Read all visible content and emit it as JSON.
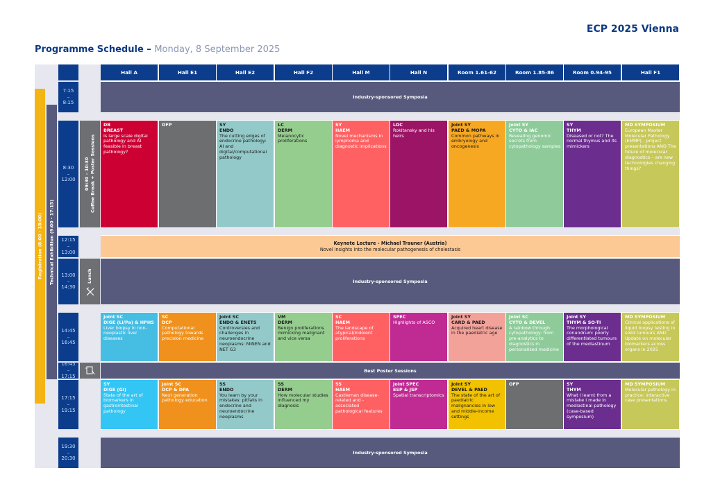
{
  "header": {
    "brand": "ECP 2025 Vienna",
    "title": "Programme Schedule –",
    "date": "Monday, 8 September 2025"
  },
  "halls": [
    "Hall A",
    "Hall E1",
    "Hall E2",
    "Hall F2",
    "Hall M",
    "Hall N",
    "Room 1.61-62",
    "Room 1.85-86",
    "Room 0.94-95",
    "Hall F1"
  ],
  "side_bars": {
    "registration": "Registration (8:00 - 18:00)",
    "exhibition": "Technical Exhibition (9:00 - 17:15)",
    "coffee": "09:30 – 10:30\nCoffee Break + Poster Sessions",
    "lunch": "Lunch"
  },
  "times": {
    "t1": {
      "start": "7:15",
      "sep": "–",
      "end": "8:15"
    },
    "t2": {
      "start": "8:30",
      "sep": "–",
      "end": "12:00"
    },
    "t3": {
      "start": "12:15",
      "sep": "–",
      "end": "13:00"
    },
    "t4": {
      "start": "13:00",
      "sep": "–",
      "end": "14:30"
    },
    "t5": {
      "start": "14:45",
      "sep": "–",
      "end": "16:45"
    },
    "t6": {
      "start": "16:45",
      "sep": "–",
      "end": "17:15"
    },
    "t7": {
      "start": "17:15",
      "sep": "–",
      "end": "19:15"
    },
    "t8": {
      "start": "19:30",
      "sep": "–",
      "end": "20:30"
    }
  },
  "bands": {
    "industry1": "Industry-sponsored Symposia",
    "keynote_title": "Keynote Lecture - Michael Trauner (Austria)",
    "keynote_sub": "Novel insights into the molecular pathogenesis of cholestasis",
    "industry2": "Industry-sponsored Symposia",
    "poster": "Best Poster Sessions",
    "industry3": "Industry-sponsored Symposia"
  },
  "rows": {
    "morning": [
      {
        "tag1": "DB",
        "tag2": "BREAST",
        "desc": "Is large scale digital pathology and AI feasible in breast pathology?",
        "bg": "#cc0033",
        "fg": "#ffffff"
      },
      {
        "tag1": "OFP",
        "tag2": "",
        "desc": "",
        "bg": "#6d6e70",
        "fg": "#ffffff"
      },
      {
        "tag1": "SY",
        "tag2": "ENDO",
        "desc": "The cutting edges of endocrine pathology: AI and digital/computational pathology",
        "bg": "#93c9c9",
        "fg": "#1a1a1a"
      },
      {
        "tag1": "LC",
        "tag2": "DERM",
        "desc": "Melanocytic proliferations",
        "bg": "#95cd8f",
        "fg": "#1a1a1a"
      },
      {
        "tag1": "SY",
        "tag2": "HAEM",
        "desc": "Novel mechanisms in lymphoma and diagnostic implications",
        "bg": "#ff6163",
        "fg": "#ffffff"
      },
      {
        "tag1": "LOC",
        "tag2": "",
        "desc": "Rokitansky and his heirs",
        "bg": "#9c1466",
        "fg": "#ffffff"
      },
      {
        "tag1": "Joint SY",
        "tag2": "PAED & MOPA",
        "desc": "Common pathways in embryology and oncogenesis",
        "bg": "#f7a823",
        "fg": "#1a1a1a"
      },
      {
        "tag1": "Joint SY",
        "tag2": "CYTO & IAC",
        "desc": "Revealing genomic secrets from cytopathology samples",
        "bg": "#8fcb9a",
        "fg": "#ffffff"
      },
      {
        "tag1": "SY",
        "tag2": "THYM",
        "desc": "Diseased or not? The normal thymus and its mimickers",
        "bg": "#6b2d8e",
        "fg": "#ffffff"
      },
      {
        "tag1": "MD SYMPOSIUM",
        "tag2": "",
        "desc": "European Master Molecular Pathology (EMMP) - project presentations AND The future of molecular diagnostics – are new technologies changing things?",
        "bg": "#c7c85a",
        "fg": "#ffffff"
      }
    ],
    "afternoon": [
      {
        "tag1": "Joint SC",
        "tag2": "DIGE (Li/Pa) & HPHS",
        "desc": "Liver biopsy in non-neoplastic liver diseases",
        "bg": "#46bde3",
        "fg": "#ffffff"
      },
      {
        "tag1": "SC",
        "tag2": "DCP",
        "desc": "Computational pathology towards precision medicine",
        "bg": "#f0911d",
        "fg": "#ffffff"
      },
      {
        "tag1": "Joint SC",
        "tag2": "ENDO & ENETS",
        "desc": "Controversies and challenges in neuroendocrine neoplasms: MiNEN and NET G3",
        "bg": "#93c9c9",
        "fg": "#1a1a1a"
      },
      {
        "tag1": "VM",
        "tag2": "DERM",
        "desc": "Benign proliferations mimicking malignant and vice versa",
        "bg": "#95cd8f",
        "fg": "#1a1a1a"
      },
      {
        "tag1": "SC",
        "tag2": "HAEM",
        "desc": "The landscape of atypical/indolent proliferations",
        "bg": "#ff6163",
        "fg": "#ffffff"
      },
      {
        "tag1": "SPEC",
        "tag2": "",
        "desc": "Highlights of ASCO",
        "bg": "#c02a93",
        "fg": "#ffffff"
      },
      {
        "tag1": "Joint SY",
        "tag2": "CARD & PAED",
        "desc": "Acquired heart disease in the paediatric age",
        "bg": "#f3a29a",
        "fg": "#1a1a1a"
      },
      {
        "tag1": "Joint SC",
        "tag2": "CYTO & DEVEL",
        "desc": "A rainbow through cytopathology: from pre-analytics to diagnostics in personalised medicine",
        "bg": "#8fcb9a",
        "fg": "#ffffff"
      },
      {
        "tag1": "Joint SY",
        "tag2": "THYM & SO-TI",
        "desc": "The morphological conundrum: poorly differentiated tumours of the mediastinum",
        "bg": "#6b2d8e",
        "fg": "#ffffff"
      },
      {
        "tag1": "MD SYMPOSIUM",
        "tag2": "",
        "desc": "Clinical applications of liquid biopsy testing in solid tumours AND Update on molecular biomarkers across organs in 2025",
        "bg": "#c7c85a",
        "fg": "#ffffff"
      }
    ],
    "evening": [
      {
        "tag1": "SY",
        "tag2": "DIGE (GI)",
        "desc": "State of the art of biomarkers in gastrointestinal pathology",
        "bg": "#33c5f3",
        "fg": "#ffffff"
      },
      {
        "tag1": "Joint SC",
        "tag2": "DCP & DPA",
        "desc": "Next generation pathology education",
        "bg": "#f0911d",
        "fg": "#ffffff"
      },
      {
        "tag1": "SS",
        "tag2": "ENDO",
        "desc": "You learn by your mistakes: pitfalls in endocrine and neuroendocrine neoplasms",
        "bg": "#93c9c9",
        "fg": "#1a1a1a"
      },
      {
        "tag1": "SS",
        "tag2": "DERM",
        "desc": "How molecular studies influenced my diagnosis",
        "bg": "#95cd8f",
        "fg": "#1a1a1a"
      },
      {
        "tag1": "SS",
        "tag2": "HAEM",
        "desc": "Castleman disease-related and -associated pathological features",
        "bg": "#ff6163",
        "fg": "#ffffff"
      },
      {
        "tag1": "Joint SPEC",
        "tag2": "ESP & JSP",
        "desc": "Spatial transcriptomics",
        "bg": "#c02a93",
        "fg": "#ffffff"
      },
      {
        "tag1": "Joint SY",
        "tag2": "DEVEL & PAED",
        "desc": "The state of the art of paediatric malignancies in low and middle-income settings",
        "bg": "#f2c200",
        "fg": "#1a1a1a"
      },
      {
        "tag1": "OFP",
        "tag2": "",
        "desc": "",
        "bg": "#6d6e70",
        "fg": "#ffffff"
      },
      {
        "tag1": "SY",
        "tag2": "THYM",
        "desc": "What I learnt from a mistake I made in mediastinal pathology (case-based symposium)",
        "bg": "#6b2d8e",
        "fg": "#ffffff"
      },
      {
        "tag1": "MD SYMPOSIUM",
        "tag2": "",
        "desc": "Molecular pathology in practice: interactive case presentations",
        "bg": "#c7c85a",
        "fg": "#ffffff"
      }
    ]
  },
  "colors": {
    "navy": "#0b3d8c",
    "band": "#575a7d",
    "registration": "#f4b414",
    "exhibition": "#575a7d",
    "keynote": "#fcc995"
  },
  "icons": {
    "lunch": "cutlery-icon",
    "poster": "poster-icon"
  }
}
